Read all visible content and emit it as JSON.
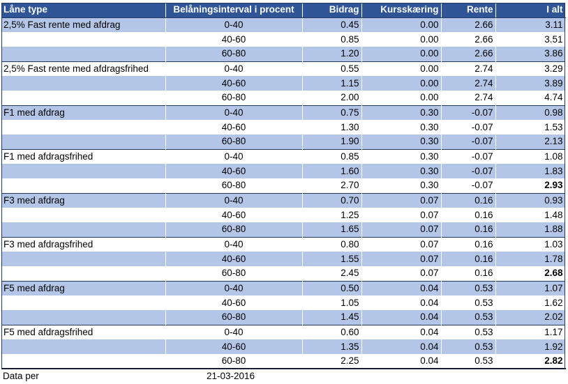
{
  "headers": [
    "Låne type",
    "Belåningsinterval i procent",
    "Bidrag",
    "Kursskæring",
    "Rente",
    "I alt"
  ],
  "rows": [
    {
      "type": "2,5% Fast rente med afdrag",
      "interval": "0-40",
      "bidrag": "0.45",
      "kurs": "0.00",
      "rente": "2.66",
      "ialt": "3.11",
      "bold": false
    },
    {
      "type": "",
      "interval": "40-60",
      "bidrag": "0.85",
      "kurs": "0.00",
      "rente": "2.66",
      "ialt": "3.51",
      "bold": false
    },
    {
      "type": "",
      "interval": "60-80",
      "bidrag": "1.20",
      "kurs": "0.00",
      "rente": "2.66",
      "ialt": "3.86",
      "bold": false
    },
    {
      "type": "2,5% Fast rente med afdragsfrihed",
      "interval": "0-40",
      "bidrag": "0.55",
      "kurs": "0.00",
      "rente": "2.74",
      "ialt": "3.29",
      "bold": false
    },
    {
      "type": "",
      "interval": "40-60",
      "bidrag": "1.15",
      "kurs": "0.00",
      "rente": "2.74",
      "ialt": "3.89",
      "bold": false
    },
    {
      "type": "",
      "interval": "60-80",
      "bidrag": "2.00",
      "kurs": "0.00",
      "rente": "2.74",
      "ialt": "4.74",
      "bold": false
    },
    {
      "type": "F1 med afdrag",
      "interval": "0-40",
      "bidrag": "0.75",
      "kurs": "0.30",
      "rente": "-0.07",
      "ialt": "0.98",
      "bold": false
    },
    {
      "type": "",
      "interval": "40-60",
      "bidrag": "1.30",
      "kurs": "0.30",
      "rente": "-0.07",
      "ialt": "1.53",
      "bold": false
    },
    {
      "type": "",
      "interval": "60-80",
      "bidrag": "1.90",
      "kurs": "0.30",
      "rente": "-0.07",
      "ialt": "2.13",
      "bold": false
    },
    {
      "type": "F1 med afdragsfrihed",
      "interval": "0-40",
      "bidrag": "0.85",
      "kurs": "0.30",
      "rente": "-0.07",
      "ialt": "1.08",
      "bold": false
    },
    {
      "type": "",
      "interval": "40-60",
      "bidrag": "1.60",
      "kurs": "0.30",
      "rente": "-0.07",
      "ialt": "1.83",
      "bold": false
    },
    {
      "type": "",
      "interval": "60-80",
      "bidrag": "2.70",
      "kurs": "0.30",
      "rente": "-0.07",
      "ialt": "2.93",
      "bold": true
    },
    {
      "type": "F3 med afdrag",
      "interval": "0-40",
      "bidrag": "0.70",
      "kurs": "0.07",
      "rente": "0.16",
      "ialt": "0.93",
      "bold": false
    },
    {
      "type": "",
      "interval": "40-60",
      "bidrag": "1.25",
      "kurs": "0.07",
      "rente": "0.16",
      "ialt": "1.48",
      "bold": false
    },
    {
      "type": "",
      "interval": "60-80",
      "bidrag": "1.65",
      "kurs": "0.07",
      "rente": "0.16",
      "ialt": "1.88",
      "bold": false
    },
    {
      "type": "F3 med afdragsfrihed",
      "interval": "0-40",
      "bidrag": "0.80",
      "kurs": "0.07",
      "rente": "0.16",
      "ialt": "1.03",
      "bold": false
    },
    {
      "type": "",
      "interval": "40-60",
      "bidrag": "1.55",
      "kurs": "0.07",
      "rente": "0.16",
      "ialt": "1.78",
      "bold": false
    },
    {
      "type": "",
      "interval": "60-80",
      "bidrag": "2.45",
      "kurs": "0.07",
      "rente": "0.16",
      "ialt": "2.68",
      "bold": true
    },
    {
      "type": "F5 med afdrag",
      "interval": "0-40",
      "bidrag": "0.50",
      "kurs": "0.04",
      "rente": "0.53",
      "ialt": "1.07",
      "bold": false
    },
    {
      "type": "",
      "interval": "40-60",
      "bidrag": "1.05",
      "kurs": "0.04",
      "rente": "0.53",
      "ialt": "1.62",
      "bold": false
    },
    {
      "type": "",
      "interval": "60-80",
      "bidrag": "1.45",
      "kurs": "0.04",
      "rente": "0.53",
      "ialt": "2.02",
      "bold": false
    },
    {
      "type": "F5 med afdragsfrihed",
      "interval": "0-40",
      "bidrag": "0.60",
      "kurs": "0.04",
      "rente": "0.53",
      "ialt": "1.17",
      "bold": false
    },
    {
      "type": "",
      "interval": "40-60",
      "bidrag": "1.35",
      "kurs": "0.04",
      "rente": "0.53",
      "ialt": "1.92",
      "bold": false
    },
    {
      "type": "",
      "interval": "60-80",
      "bidrag": "2.25",
      "kurs": "0.04",
      "rente": "0.53",
      "ialt": "2.82",
      "bold": true
    }
  ],
  "footer": {
    "label": "Data per",
    "date": "21-03-2016"
  },
  "colors": {
    "header_bg": "#2f5597",
    "header_text": "#ffffff",
    "band": "#b4c6e7",
    "rule": "#1f3864"
  }
}
